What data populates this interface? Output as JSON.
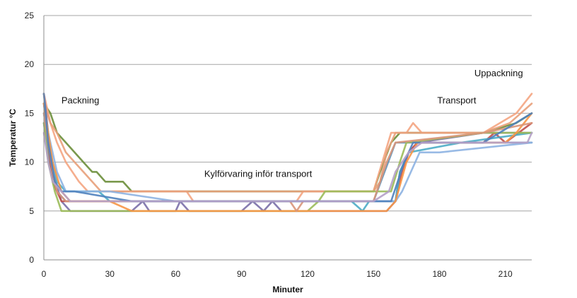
{
  "chart_data": {
    "type": "line",
    "title": "",
    "xlabel": "Minuter",
    "ylabel": "Temperatur °C",
    "xlim": [
      0,
      222
    ],
    "ylim": [
      0,
      25
    ],
    "x_ticks": [
      0,
      30,
      60,
      90,
      120,
      150,
      180,
      210
    ],
    "y_ticks": [
      0,
      5,
      10,
      15,
      20,
      25
    ],
    "grid": "horizontal",
    "legend": "none",
    "annotations": [
      {
        "text": "Packning",
        "x": 8,
        "y": 16
      },
      {
        "text": "Kylförvaring inför transport",
        "x": 73,
        "y": 8.5
      },
      {
        "text": "Transport",
        "x": 179,
        "y": 16
      },
      {
        "text": "Uppackning",
        "x": 218,
        "y": 18.8
      }
    ],
    "series": [
      {
        "color": "#6b8e3a",
        "x": [
          0,
          3,
          6,
          10,
          14,
          18,
          22,
          24,
          28,
          32,
          36,
          40,
          44,
          140,
          150,
          153,
          158,
          162,
          170,
          200,
          215,
          222
        ],
        "y": [
          16,
          15,
          13,
          12,
          11,
          10,
          9,
          9,
          8,
          8,
          8,
          7,
          7,
          7,
          7,
          9,
          12,
          13,
          13,
          13,
          14,
          15
        ]
      },
      {
        "color": "#f4a582",
        "x": [
          0,
          3,
          6,
          10,
          16,
          20,
          30,
          60,
          65,
          68,
          115,
          118,
          150,
          154,
          158,
          165,
          168,
          172,
          200,
          215,
          222
        ],
        "y": [
          17,
          14,
          12,
          10,
          8,
          7,
          7,
          7,
          7,
          6,
          6,
          7,
          7,
          10,
          13,
          13,
          14,
          13,
          13,
          15,
          17
        ]
      },
      {
        "color": "#e8a07a",
        "x": [
          0,
          3,
          6,
          10,
          14,
          18,
          22,
          26,
          30,
          40,
          150,
          153,
          156,
          160,
          200,
          212,
          222
        ],
        "y": [
          16,
          14,
          13,
          11,
          10,
          9,
          8,
          7,
          7,
          7,
          7,
          8,
          11,
          13,
          13,
          14,
          16
        ]
      },
      {
        "color": "#5f8fb4",
        "x": [
          0,
          2,
          4,
          6,
          10,
          20,
          30,
          60,
          120,
          145,
          150,
          155,
          160,
          165,
          175,
          222
        ],
        "y": [
          14,
          11,
          8,
          7,
          6,
          6,
          6,
          6,
          6,
          6,
          6,
          9,
          12,
          12,
          12,
          12
        ]
      },
      {
        "color": "#7a6fa8",
        "x": [
          0,
          2,
          4,
          8,
          12,
          40,
          45,
          48,
          52,
          60,
          62,
          66,
          70,
          90,
          95,
          100,
          104,
          108,
          112,
          150,
          156,
          160,
          162,
          166,
          170,
          200,
          222
        ],
        "y": [
          17,
          13,
          9,
          6,
          5,
          5,
          6,
          5,
          5,
          5,
          6,
          5,
          5,
          5,
          6,
          5,
          6,
          5,
          5,
          5,
          5,
          6,
          9,
          11,
          12,
          13,
          13
        ]
      },
      {
        "color": "#c0504d",
        "x": [
          0,
          2,
          4,
          6,
          8,
          20,
          40,
          140,
          150,
          160,
          163,
          166,
          170,
          190,
          200,
          205,
          210,
          222
        ],
        "y": [
          16,
          12,
          8,
          7,
          6,
          6,
          6,
          6,
          6,
          6,
          9,
          11,
          12,
          12,
          12,
          13,
          12,
          14
        ]
      },
      {
        "color": "#4bacc6",
        "x": [
          0,
          3,
          6,
          10,
          15,
          20,
          25,
          30,
          40,
          140,
          145,
          148,
          155,
          160,
          162,
          166,
          190,
          222
        ],
        "y": [
          15,
          11,
          8,
          7,
          7,
          7,
          7,
          6,
          6,
          6,
          5,
          6,
          6,
          6,
          9,
          11,
          12,
          13
        ]
      },
      {
        "color": "#9bbb59",
        "x": [
          0,
          2,
          5,
          8,
          12,
          20,
          40,
          120,
          125,
          128,
          150,
          158,
          162,
          165,
          200,
          222
        ],
        "y": [
          14,
          10,
          7,
          5,
          5,
          5,
          5,
          5,
          6,
          7,
          7,
          7,
          10,
          12,
          13,
          13
        ]
      },
      {
        "color": "#8db3e2",
        "x": [
          0,
          3,
          6,
          10,
          30,
          60,
          150,
          160,
          163,
          167,
          171,
          180,
          222
        ],
        "y": [
          15,
          12,
          9,
          7,
          7,
          6,
          6,
          6,
          7,
          9,
          11,
          11,
          12
        ]
      },
      {
        "color": "#f79646",
        "x": [
          0,
          2,
          4,
          8,
          12,
          30,
          40,
          130,
          140,
          150,
          156,
          160,
          165,
          170,
          210,
          215,
          222
        ],
        "y": [
          16,
          13,
          10,
          7,
          6,
          6,
          5,
          5,
          5,
          5,
          5,
          6,
          10,
          12,
          12,
          13,
          15
        ]
      },
      {
        "color": "#d9967a",
        "x": [
          0,
          2,
          4,
          6,
          10,
          30,
          60,
          112,
          115,
          118,
          150,
          153,
          156,
          160,
          200,
          222
        ],
        "y": [
          15,
          12,
          9,
          7,
          6,
          6,
          6,
          6,
          5,
          6,
          6,
          8,
          10,
          12,
          13,
          14
        ]
      },
      {
        "color": "#4f81bd",
        "x": [
          0,
          2,
          5,
          8,
          14,
          40,
          150,
          158,
          161,
          164,
          168,
          200,
          222
        ],
        "y": [
          17,
          12,
          8,
          7,
          7,
          6,
          6,
          6,
          8,
          10,
          12,
          12,
          15
        ]
      },
      {
        "color": "#b5a0c8",
        "x": [
          0,
          2,
          4,
          8,
          12,
          30,
          60,
          150,
          157,
          160,
          166,
          172,
          220,
          222
        ],
        "y": [
          13,
          10,
          8,
          7,
          6,
          6,
          6,
          6,
          7,
          9,
          11,
          12,
          12,
          13
        ]
      }
    ]
  }
}
